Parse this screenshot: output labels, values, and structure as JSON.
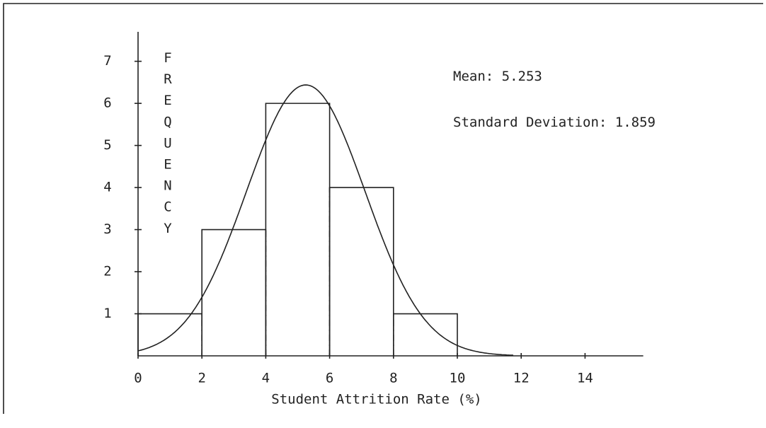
{
  "chart_data": {
    "type": "histogram",
    "xlabel": "Student Attrition Rate (%)",
    "ylabel": "FREQUENCY",
    "bins": [
      0,
      2,
      4,
      6,
      8,
      10
    ],
    "counts": [
      1,
      3,
      6,
      4,
      1
    ],
    "color": "#222222",
    "mean": {
      "label": "Mean:",
      "value": 5.253
    },
    "sd": {
      "label": "Standard Deviation:",
      "value": 1.859
    },
    "xlim": [
      0,
      16
    ],
    "xticks": [
      0,
      2,
      4,
      6,
      8,
      10,
      12,
      14
    ],
    "ylim": [
      0,
      7.7
    ],
    "yticks": [
      1,
      2,
      3,
      4,
      5,
      6,
      7
    ]
  }
}
